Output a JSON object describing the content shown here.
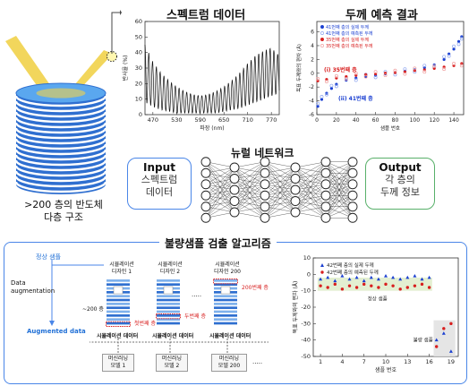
{
  "top": {
    "spectrum_title": "스펙트럼 데이터",
    "thickness_title": "두께 예측 결과",
    "stack_label_line1": ">200 층의 반도체",
    "stack_label_line2": "다층 구조"
  },
  "network": {
    "title": "뉴럴 네트워크",
    "input_title": "Input",
    "input_line1": "스펙트럼",
    "input_line2": "데이터",
    "output_title": "Output",
    "output_line1": "각 층의",
    "output_line2": "두께 정보"
  },
  "bottom": {
    "title": "불량샘플 검출 알고리즘",
    "normal_sample": "정상 샘플",
    "augmentation_line1": "Data",
    "augmentation_line2": "augmentation",
    "augmented_data": "Augmented data",
    "thickness_note": "~200 층",
    "designs": [
      {
        "line1": "시뮬레이션",
        "line2": "디자인 1",
        "note": "첫번째 층",
        "data": "시뮬레이션 데이터",
        "model1": "머신러닝",
        "model2": "모델 1"
      },
      {
        "line1": "시뮬레이션",
        "line2": "디자인 2",
        "note": "두번째 층",
        "data": "시뮬레이션 데이터",
        "model1": "머신러닝",
        "model2": "모델 2"
      },
      {
        "line1": "시뮬레이션",
        "line2": "디자인 200",
        "note": "200번째 층",
        "data": "시뮬레이션 데이터",
        "model1": "머신러닝",
        "model2": "모델 200"
      }
    ],
    "ellipsis": "....."
  },
  "chart_data": [
    {
      "type": "line",
      "xlabel": "파장 (nm)",
      "ylabel": "반사율 (%)",
      "xlim": [
        450,
        790
      ],
      "ylim": [
        0,
        60
      ],
      "xticks": [
        470,
        530,
        590,
        650,
        710,
        770
      ],
      "yticks": [
        0,
        10,
        20,
        30,
        40,
        50,
        60
      ],
      "x": [
        450,
        470,
        490,
        510,
        530,
        550,
        570,
        590,
        610,
        630,
        650,
        670,
        690,
        710,
        730,
        750,
        770,
        790
      ],
      "envelope_top": [
        45,
        34,
        27,
        22,
        18,
        15,
        13,
        12,
        13,
        15,
        18,
        22,
        27,
        33,
        38,
        41,
        43,
        38
      ],
      "envelope_bottom": [
        8,
        5,
        3,
        2,
        1,
        1,
        1,
        1,
        1,
        1,
        2,
        3,
        4,
        6,
        8,
        10,
        12,
        14
      ],
      "line_color": "#111111"
    },
    {
      "type": "scatter",
      "xlabel": "샘플 번호",
      "ylabel": "목표 두께와의 편차 (Å)",
      "xlim": [
        0,
        150
      ],
      "ylim": [
        -6,
        7.5
      ],
      "xticks": [
        0,
        20,
        40,
        60,
        80,
        100,
        120,
        140
      ],
      "yticks": [
        -6,
        -4,
        -2,
        0,
        2,
        4,
        6
      ],
      "legend": [
        "41번째 층의 실제 두께",
        "41번째 층의 예측된 두께",
        "35번째 층의 실제 두께",
        "35번째 층의 예측된 두께"
      ],
      "annotations": [
        "(i) 35번째 층",
        "(ii) 41번째 층"
      ],
      "series": [
        {
          "name": "41번째 층의 실제 두께",
          "color": "#1a3fd1",
          "x": [
            1,
            5,
            10,
            15,
            20,
            30,
            40,
            50,
            60,
            70,
            80,
            90,
            100,
            110,
            120,
            130,
            135,
            140,
            145,
            148
          ],
          "values": [
            -4.8,
            -3.8,
            -2.9,
            -2.2,
            -1.6,
            -1.0,
            -0.7,
            -0.5,
            -0.3,
            -0.1,
            0.1,
            0.3,
            0.5,
            0.8,
            1.2,
            2.0,
            2.8,
            3.5,
            4.6,
            5.3
          ]
        },
        {
          "name": "41번째 층의 예측된 두께",
          "color": "#8fa6ef",
          "x": [
            1,
            5,
            10,
            15,
            20,
            30,
            40,
            50,
            60,
            70,
            80,
            90,
            100,
            110,
            120,
            130,
            135,
            140,
            145,
            148
          ],
          "values": [
            -4.4,
            -3.4,
            -3.1,
            -1.8,
            -1.9,
            -0.7,
            -1.0,
            -0.2,
            -0.6,
            0.2,
            -0.2,
            0.6,
            0.2,
            1.1,
            0.9,
            2.4,
            2.5,
            3.9,
            4.2,
            5.0
          ]
        },
        {
          "name": "35번째 층의 실제 두께",
          "color": "#d81e1e",
          "x": [
            1,
            10,
            20,
            30,
            40,
            50,
            60,
            70,
            80,
            90,
            100,
            110,
            120,
            130,
            140,
            148
          ],
          "values": [
            -1.1,
            -0.9,
            -0.7,
            -0.5,
            -0.3,
            -0.2,
            -0.1,
            0.0,
            0.1,
            0.2,
            0.4,
            0.5,
            0.7,
            0.9,
            1.1,
            1.4
          ]
        },
        {
          "name": "35번째 층의 예측된 두께",
          "color": "#f0a0a0",
          "x": [
            1,
            10,
            20,
            30,
            40,
            50,
            60,
            70,
            80,
            90,
            100,
            110,
            120,
            130,
            140,
            148
          ],
          "values": [
            -0.8,
            -1.2,
            -0.4,
            -0.8,
            0.0,
            -0.5,
            0.2,
            -0.3,
            0.4,
            -0.1,
            0.7,
            0.2,
            1.0,
            0.6,
            1.4,
            1.1
          ]
        }
      ]
    },
    {
      "type": "scatter",
      "xlabel": "샘플 번호",
      "ylabel": "목표 두께와의 편차 (Å)",
      "xlim": [
        0,
        20
      ],
      "ylim": [
        -50,
        10
      ],
      "xticks": [
        1,
        4,
        7,
        10,
        13,
        16,
        19
      ],
      "yticks": [
        -50,
        -40,
        -30,
        -20,
        -10,
        0,
        10
      ],
      "legend": [
        "42번째 층의 실제 두께",
        "42번째 층의 예측된 두께"
      ],
      "annotations": [
        "정상 샘플",
        "불량 샘플"
      ],
      "series": [
        {
          "name": "42번째 층의 실제 두께",
          "color": "#1a3fd1",
          "x": [
            1,
            2,
            3,
            4,
            5,
            6,
            7,
            8,
            9,
            10,
            11,
            12,
            13,
            14,
            15,
            16,
            17,
            18,
            19
          ],
          "values": [
            -3,
            -2,
            -4,
            -1,
            -3,
            -2,
            -4,
            -2,
            -3,
            -1,
            -2,
            -3,
            -2,
            -1,
            -3,
            -2,
            -40,
            -36,
            -47
          ]
        },
        {
          "name": "42번째 층의 예측된 두께",
          "color": "#d81e1e",
          "x": [
            1,
            2,
            3,
            4,
            5,
            6,
            7,
            8,
            9,
            10,
            11,
            12,
            13,
            14,
            15,
            16,
            17,
            18,
            19
          ],
          "values": [
            -7,
            -8,
            -6,
            -9,
            -7,
            -8,
            -6,
            -7,
            -8,
            -6,
            -7,
            -9,
            -8,
            -7,
            -6,
            -8,
            -44,
            -33,
            -30
          ]
        }
      ]
    }
  ]
}
